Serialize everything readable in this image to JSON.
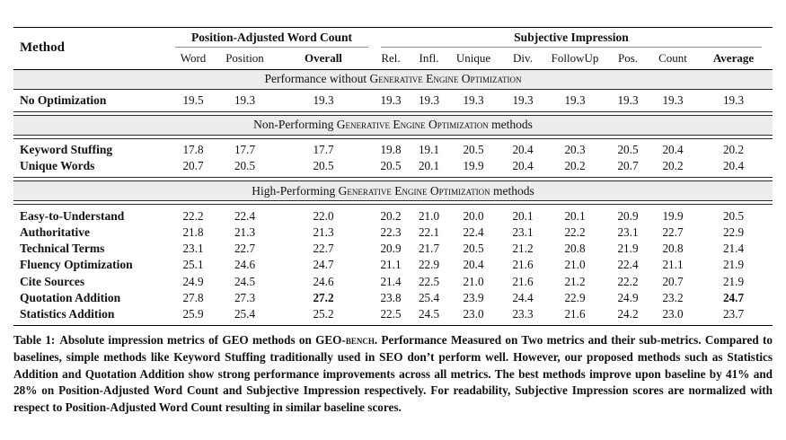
{
  "table": {
    "method_header": "Method",
    "groups": {
      "pawc": "Position-Adjusted Word Count",
      "si": "Subjective Impression"
    },
    "sub_headers": [
      {
        "label": "Word",
        "bold": false
      },
      {
        "label": "Position",
        "bold": false
      },
      {
        "label": "Overall",
        "bold": true
      },
      {
        "label": "Rel.",
        "bold": false
      },
      {
        "label": "Infl.",
        "bold": false
      },
      {
        "label": "Unique",
        "bold": false
      },
      {
        "label": "Div.",
        "bold": false
      },
      {
        "label": "FollowUp",
        "bold": false
      },
      {
        "label": "Pos.",
        "bold": false
      },
      {
        "label": "Count",
        "bold": false
      },
      {
        "label": "Average",
        "bold": true
      }
    ],
    "sections": [
      {
        "band": {
          "pre": "Performance without ",
          "smallcaps": "Generative Engine Optimization",
          "post": ""
        },
        "rows": [
          {
            "method": "No Optimization",
            "values": [
              "19.5",
              "19.3",
              "19.3",
              "19.3",
              "19.3",
              "19.3",
              "19.3",
              "19.3",
              "19.3",
              "19.3",
              "19.3"
            ],
            "bold_value_indices": []
          }
        ]
      },
      {
        "band": {
          "pre": "Non-Performing ",
          "smallcaps": "Generative Engine Optimization",
          "post": " methods"
        },
        "rows": [
          {
            "method": "Keyword Stuffing",
            "values": [
              "17.8",
              "17.7",
              "17.7",
              "19.8",
              "19.1",
              "20.5",
              "20.4",
              "20.3",
              "20.5",
              "20.4",
              "20.2"
            ],
            "bold_value_indices": []
          },
          {
            "method": "Unique Words",
            "values": [
              "20.7",
              "20.5",
              "20.5",
              "20.5",
              "20.1",
              "19.9",
              "20.4",
              "20.2",
              "20.7",
              "20.2",
              "20.4"
            ],
            "bold_value_indices": []
          }
        ]
      },
      {
        "band": {
          "pre": "High-Performing ",
          "smallcaps": "Generative Engine Optimization",
          "post": " methods"
        },
        "rows": [
          {
            "method": "Easy-to-Understand",
            "values": [
              "22.2",
              "22.4",
              "22.0",
              "20.2",
              "21.0",
              "20.0",
              "20.1",
              "20.1",
              "20.9",
              "19.9",
              "20.5"
            ],
            "bold_value_indices": []
          },
          {
            "method": "Authoritative",
            "values": [
              "21.8",
              "21.3",
              "21.3",
              "22.3",
              "22.1",
              "22.4",
              "23.1",
              "22.2",
              "23.1",
              "22.7",
              "22.9"
            ],
            "bold_value_indices": []
          },
          {
            "method": "Technical Terms",
            "values": [
              "23.1",
              "22.7",
              "22.7",
              "20.9",
              "21.7",
              "20.5",
              "21.2",
              "20.8",
              "21.9",
              "20.8",
              "21.4"
            ],
            "bold_value_indices": []
          },
          {
            "method": "Fluency Optimization",
            "values": [
              "25.1",
              "24.6",
              "24.7",
              "21.1",
              "22.9",
              "20.4",
              "21.6",
              "21.0",
              "22.4",
              "21.1",
              "21.9"
            ],
            "bold_value_indices": []
          },
          {
            "method": "Cite Sources",
            "values": [
              "24.9",
              "24.5",
              "24.6",
              "21.4",
              "22.5",
              "21.0",
              "21.6",
              "21.2",
              "22.2",
              "20.7",
              "21.9"
            ],
            "bold_value_indices": []
          },
          {
            "method": "Quotation Addition",
            "values": [
              "27.8",
              "27.3",
              "27.2",
              "23.8",
              "25.4",
              "23.9",
              "24.4",
              "22.9",
              "24.9",
              "23.2",
              "24.7"
            ],
            "bold_value_indices": [
              2,
              10
            ]
          },
          {
            "method": "Statistics Addition",
            "values": [
              "25.9",
              "25.4",
              "25.2",
              "22.5",
              "24.5",
              "23.0",
              "23.3",
              "21.6",
              "24.2",
              "23.0",
              "23.7"
            ],
            "bold_value_indices": []
          }
        ]
      }
    ]
  },
  "caption": {
    "label": "Table 1:",
    "pre_bench": "Absolute impression metrics of GEO methods on GEO-",
    "bench_smallcaps": "bench",
    "post_bench": ". Performance Measured on Two metrics and their sub-metrics. Compared to baselines, simple methods like Keyword Stuffing traditionally used in SEO don’t perform well. However, our proposed methods such as Statistics Addition and Quotation Addition show strong performance improvements across all metrics. The best methods improve upon baseline by 41% and 28% on Position-Adjusted Word Count and Subjective Impression respectively. For readability, Subjective Impression scores are normalized with respect to Position-Adjusted Word Count resulting in similar baseline scores."
  },
  "colors": {
    "band_bg": "#ececec",
    "rule": "#000000",
    "text": "#111111",
    "page_bg": "#ffffff"
  }
}
